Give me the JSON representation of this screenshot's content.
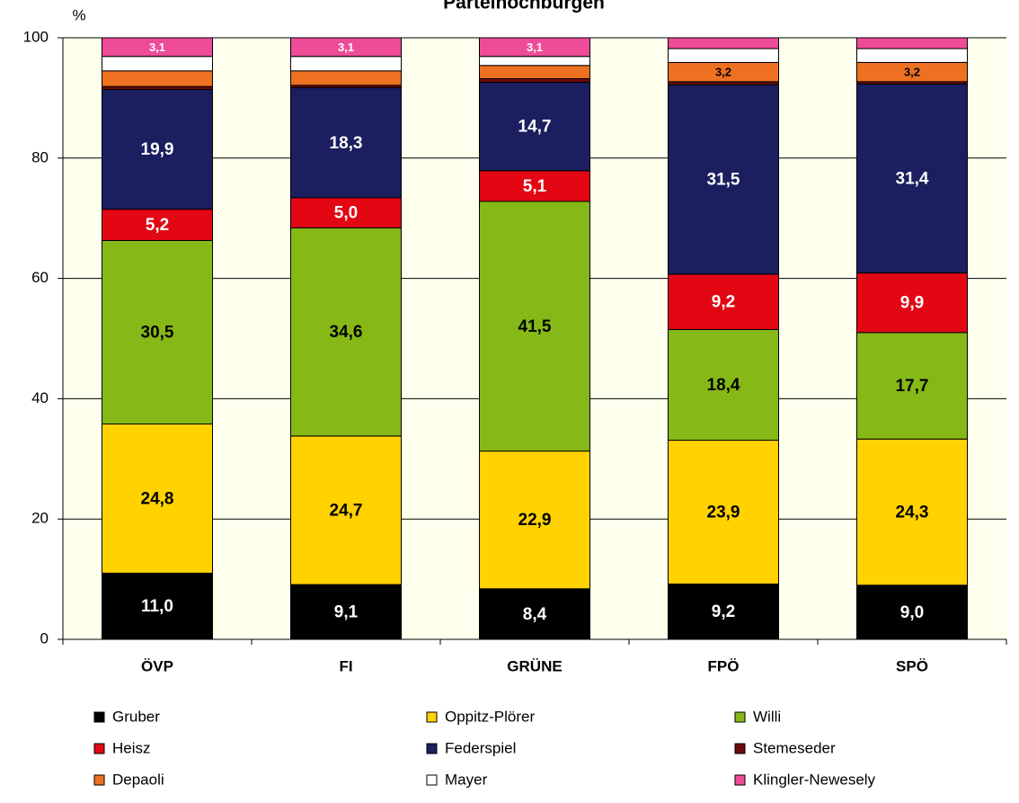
{
  "chart_data": {
    "type": "bar",
    "stacked": true,
    "title": "Parteihochburgen",
    "y_label": "%",
    "categories": [
      "ÖVP",
      "FI",
      "GRÜNE",
      "FPÖ",
      "SPÖ"
    ],
    "ylim": [
      0,
      100
    ],
    "yticks": [
      0,
      20,
      40,
      60,
      80,
      100
    ],
    "grid": true,
    "plot_background": "#ffffee",
    "legend_position": "bottom",
    "series": [
      {
        "name": "Gruber",
        "color": "#000000",
        "values": [
          11.0,
          9.1,
          8.4,
          9.2,
          9.0
        ],
        "value_labels": [
          "11,0",
          "9,1",
          "8,4",
          "9,2",
          "9,0"
        ]
      },
      {
        "name": "Oppitz-Plörer",
        "color": "#ffd200",
        "values": [
          24.8,
          24.7,
          22.9,
          23.9,
          24.3
        ],
        "value_labels": [
          "24,8",
          "24,7",
          "22,9",
          "23,9",
          "24,3"
        ]
      },
      {
        "name": "Willi",
        "color": "#86b817",
        "values": [
          30.5,
          34.6,
          41.5,
          18.4,
          17.7
        ],
        "value_labels": [
          "30,5",
          "34,6",
          "41,5",
          "18,4",
          "17,7"
        ]
      },
      {
        "name": "Heisz",
        "color": "#e30613",
        "values": [
          5.2,
          5.0,
          5.1,
          9.2,
          9.9
        ],
        "value_labels": [
          "5,2",
          "5,0",
          "5,1",
          "9,2",
          "9,9"
        ]
      },
      {
        "name": "Federspiel",
        "color": "#1b1f5f",
        "values": [
          19.9,
          18.3,
          14.7,
          31.5,
          31.4
        ],
        "value_labels": [
          "19,9",
          "18,3",
          "14,7",
          "31,5",
          "31,4"
        ]
      },
      {
        "name": "Stemeseder",
        "color": "#6b0a0a",
        "values": [
          0.5,
          0.4,
          0.6,
          0.5,
          0.4
        ],
        "value_labels": [
          null,
          null,
          null,
          null,
          null
        ]
      },
      {
        "name": "Depaoli",
        "color": "#ee7122",
        "values": [
          2.6,
          2.4,
          2.2,
          3.2,
          3.2
        ],
        "value_labels": [
          null,
          null,
          null,
          "3,2",
          "3,2"
        ]
      },
      {
        "name": "Mayer",
        "color": "#ffffff",
        "values": [
          2.4,
          2.4,
          1.5,
          2.3,
          2.3
        ],
        "value_labels": [
          null,
          null,
          null,
          null,
          null
        ]
      },
      {
        "name": "Klingler-Newesely",
        "color": "#ee4c98",
        "values": [
          3.1,
          3.1,
          3.1,
          1.8,
          1.8
        ],
        "value_labels": [
          "3,1",
          "3,1",
          "3,1",
          null,
          null
        ]
      }
    ]
  }
}
